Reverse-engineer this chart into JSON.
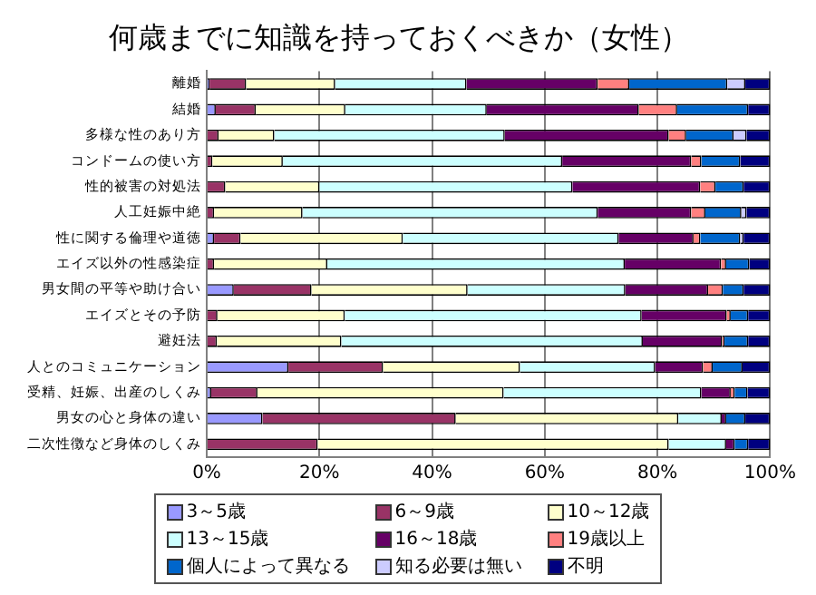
{
  "chart_data": {
    "type": "bar",
    "orientation": "horizontal",
    "stacked": true,
    "title": "何歳までに知識を持っておくべきか（女性）",
    "categories": [
      "離婚",
      "結婚",
      "多様な性のあり方",
      "コンドームの使い方",
      "性的被害の対処法",
      "人工妊娠中絶",
      "性に関する倫理や道徳",
      "エイズ以外の性感染症",
      "男女間の平等や助け合い",
      "エイズとその予防",
      "避妊法",
      "人とのコミュニケーション",
      "受精、妊娠、出産のしくみ",
      "男女の心と身体の違い",
      "二次性徴など身体のしくみ"
    ],
    "series": [
      {
        "name": "3～5歳",
        "color": "#9999ff",
        "values": [
          0.5,
          1.6,
          0,
          0,
          0,
          0,
          1.3,
          0,
          4.8,
          0,
          0,
          14.5,
          0.8,
          9.9,
          0
        ]
      },
      {
        "name": "6～9歳",
        "color": "#993366",
        "values": [
          6.5,
          7.1,
          2.1,
          1.0,
          3.3,
          1.3,
          4.7,
          1.3,
          13.8,
          1.9,
          1.8,
          16.8,
          8.2,
          34.3,
          19.7
        ]
      },
      {
        "name": "10～12歳",
        "color": "#ffffcc",
        "values": [
          15.8,
          15.9,
          9.9,
          12.5,
          16.7,
          15.7,
          28.8,
          20.1,
          27.7,
          22.6,
          22.1,
          24.3,
          43.7,
          39.5,
          62.3
        ]
      },
      {
        "name": "13～15歳",
        "color": "#ccffff",
        "values": [
          23.3,
          25.1,
          40.9,
          49.6,
          44.9,
          52.4,
          38.3,
          52.8,
          28.0,
          52.7,
          53.5,
          24.0,
          35.1,
          7.7,
          10.2
        ]
      },
      {
        "name": "16～18歳",
        "color": "#660066",
        "values": [
          23.3,
          27.0,
          29.1,
          22.9,
          22.7,
          16.6,
          13.3,
          17.1,
          14.7,
          15.1,
          14.1,
          8.5,
          5.2,
          0.8,
          1.5
        ]
      },
      {
        "name": "19歳以上",
        "color": "#ff8080",
        "values": [
          5.6,
          6.8,
          3.1,
          1.8,
          2.7,
          2.5,
          1.2,
          0.9,
          2.6,
          0.7,
          0.4,
          1.7,
          0.7,
          0,
          0
        ]
      },
      {
        "name": "個人によって異なる",
        "color": "#0066cc",
        "values": [
          17.4,
          12.6,
          8.4,
          6.9,
          5.0,
          6.4,
          7.1,
          4.1,
          3.7,
          3.1,
          4.2,
          5.3,
          2.3,
          3.4,
          2.4
        ]
      },
      {
        "name": "知る必要は無い",
        "color": "#ccccff",
        "values": [
          3.2,
          0,
          2.3,
          0,
          0,
          0.9,
          0.6,
          0,
          0,
          0,
          0,
          0,
          0,
          0,
          0
        ]
      },
      {
        "name": "不明",
        "color": "#000080",
        "values": [
          4.4,
          3.9,
          4.2,
          5.3,
          4.7,
          4.2,
          4.7,
          3.7,
          4.7,
          3.9,
          3.9,
          4.9,
          4.0,
          4.4,
          3.9
        ]
      }
    ],
    "xlim": [
      0,
      100
    ],
    "xticks": [
      {
        "value": 0,
        "label": "0%"
      },
      {
        "value": 20,
        "label": "20%"
      },
      {
        "value": 40,
        "label": "40%"
      },
      {
        "value": 60,
        "label": "60%"
      },
      {
        "value": 80,
        "label": "80%"
      },
      {
        "value": 100,
        "label": "100%"
      }
    ],
    "grid": "x",
    "legend": "bottom"
  }
}
